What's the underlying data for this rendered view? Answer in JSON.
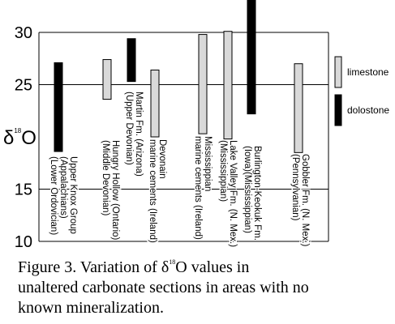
{
  "chart_data": {
    "type": "range_bar",
    "ylabel": [
      "δ",
      "18",
      "O"
    ],
    "caption": [
      "Figure 3. Variation of δ",
      "18",
      "O values in",
      "unaltered carbonate sections in areas with no",
      "known mineralization."
    ],
    "categories": [
      [
        "Upper Knox Group",
        "(Appalachians)",
        "(Lower Ordovician)"
      ],
      [
        "Hungry Hollow (Ontario)",
        "(Middle Devonian)"
      ],
      [
        "Martin Fm. (Arizona)",
        "(Upper Devonian)"
      ],
      [
        "Devonain",
        "marine cements (Ireland)"
      ],
      [
        "Mississippian",
        "marine cements (Ireland)"
      ],
      [
        "Lake Valley Fm. (N. Mex.)",
        "(Mississippian)"
      ],
      [
        "Burlington-Keokuk Fm.",
        "(Iowa)(Mississippian)"
      ],
      [
        "Gobbler Fm. (N. Mex.)",
        "(Pennsylvanian)"
      ]
    ],
    "series": [
      {
        "name": "limestone",
        "color": "#d9d9d9",
        "low": [
          null,
          23.6,
          null,
          20.0,
          20.3,
          19.8,
          null,
          18.5
        ],
        "high": [
          null,
          27.4,
          null,
          26.4,
          29.8,
          30.1,
          null,
          27.0
        ]
      },
      {
        "name": "dolostone",
        "color": "#000000",
        "low": [
          18.6,
          null,
          25.3,
          null,
          null,
          null,
          22.2,
          null
        ],
        "high": [
          27.1,
          null,
          29.4,
          null,
          null,
          null,
          33.1,
          null
        ]
      }
    ],
    "ylim": [
      10,
      33.1
    ],
    "yticks": [
      10,
      15,
      25,
      30
    ],
    "grid": true,
    "legend": "right"
  }
}
